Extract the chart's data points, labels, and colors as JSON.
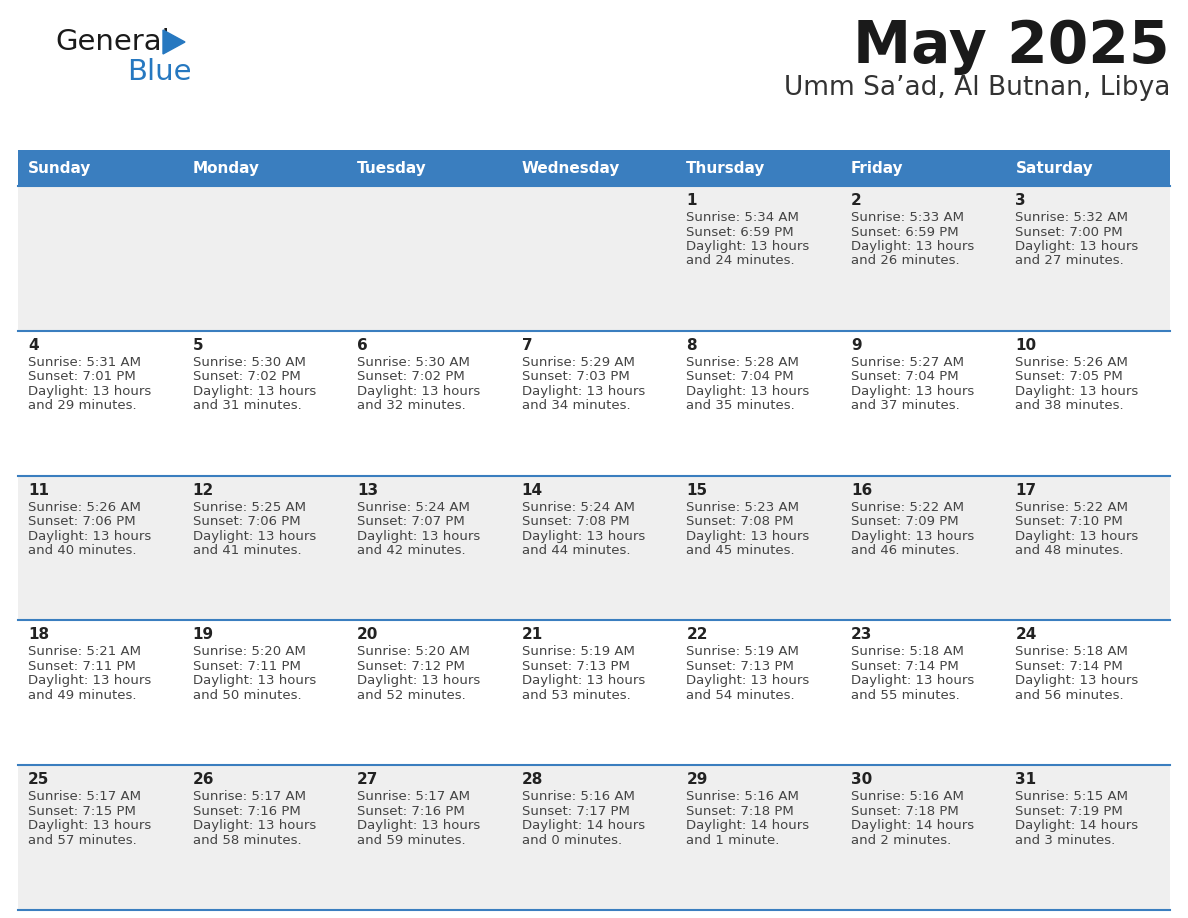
{
  "title": "May 2025",
  "subtitle": "Umm Sa’ad, Al Butnan, Libya",
  "header_bg": "#3a7ebf",
  "header_text_color": "#ffffff",
  "cell_bg_row0": "#efefef",
  "cell_bg_row1": "#ffffff",
  "separator_color": "#3a7ebf",
  "text_color": "#444444",
  "day_num_color": "#222222",
  "days_of_week": [
    "Sunday",
    "Monday",
    "Tuesday",
    "Wednesday",
    "Thursday",
    "Friday",
    "Saturday"
  ],
  "calendar_data": [
    [
      {
        "day": "",
        "sunrise": "",
        "sunset": "",
        "daylight": ""
      },
      {
        "day": "",
        "sunrise": "",
        "sunset": "",
        "daylight": ""
      },
      {
        "day": "",
        "sunrise": "",
        "sunset": "",
        "daylight": ""
      },
      {
        "day": "",
        "sunrise": "",
        "sunset": "",
        "daylight": ""
      },
      {
        "day": "1",
        "sunrise": "5:34 AM",
        "sunset": "6:59 PM",
        "daylight": "13 hours\nand 24 minutes."
      },
      {
        "day": "2",
        "sunrise": "5:33 AM",
        "sunset": "6:59 PM",
        "daylight": "13 hours\nand 26 minutes."
      },
      {
        "day": "3",
        "sunrise": "5:32 AM",
        "sunset": "7:00 PM",
        "daylight": "13 hours\nand 27 minutes."
      }
    ],
    [
      {
        "day": "4",
        "sunrise": "5:31 AM",
        "sunset": "7:01 PM",
        "daylight": "13 hours\nand 29 minutes."
      },
      {
        "day": "5",
        "sunrise": "5:30 AM",
        "sunset": "7:02 PM",
        "daylight": "13 hours\nand 31 minutes."
      },
      {
        "day": "6",
        "sunrise": "5:30 AM",
        "sunset": "7:02 PM",
        "daylight": "13 hours\nand 32 minutes."
      },
      {
        "day": "7",
        "sunrise": "5:29 AM",
        "sunset": "7:03 PM",
        "daylight": "13 hours\nand 34 minutes."
      },
      {
        "day": "8",
        "sunrise": "5:28 AM",
        "sunset": "7:04 PM",
        "daylight": "13 hours\nand 35 minutes."
      },
      {
        "day": "9",
        "sunrise": "5:27 AM",
        "sunset": "7:04 PM",
        "daylight": "13 hours\nand 37 minutes."
      },
      {
        "day": "10",
        "sunrise": "5:26 AM",
        "sunset": "7:05 PM",
        "daylight": "13 hours\nand 38 minutes."
      }
    ],
    [
      {
        "day": "11",
        "sunrise": "5:26 AM",
        "sunset": "7:06 PM",
        "daylight": "13 hours\nand 40 minutes."
      },
      {
        "day": "12",
        "sunrise": "5:25 AM",
        "sunset": "7:06 PM",
        "daylight": "13 hours\nand 41 minutes."
      },
      {
        "day": "13",
        "sunrise": "5:24 AM",
        "sunset": "7:07 PM",
        "daylight": "13 hours\nand 42 minutes."
      },
      {
        "day": "14",
        "sunrise": "5:24 AM",
        "sunset": "7:08 PM",
        "daylight": "13 hours\nand 44 minutes."
      },
      {
        "day": "15",
        "sunrise": "5:23 AM",
        "sunset": "7:08 PM",
        "daylight": "13 hours\nand 45 minutes."
      },
      {
        "day": "16",
        "sunrise": "5:22 AM",
        "sunset": "7:09 PM",
        "daylight": "13 hours\nand 46 minutes."
      },
      {
        "day": "17",
        "sunrise": "5:22 AM",
        "sunset": "7:10 PM",
        "daylight": "13 hours\nand 48 minutes."
      }
    ],
    [
      {
        "day": "18",
        "sunrise": "5:21 AM",
        "sunset": "7:11 PM",
        "daylight": "13 hours\nand 49 minutes."
      },
      {
        "day": "19",
        "sunrise": "5:20 AM",
        "sunset": "7:11 PM",
        "daylight": "13 hours\nand 50 minutes."
      },
      {
        "day": "20",
        "sunrise": "5:20 AM",
        "sunset": "7:12 PM",
        "daylight": "13 hours\nand 52 minutes."
      },
      {
        "day": "21",
        "sunrise": "5:19 AM",
        "sunset": "7:13 PM",
        "daylight": "13 hours\nand 53 minutes."
      },
      {
        "day": "22",
        "sunrise": "5:19 AM",
        "sunset": "7:13 PM",
        "daylight": "13 hours\nand 54 minutes."
      },
      {
        "day": "23",
        "sunrise": "5:18 AM",
        "sunset": "7:14 PM",
        "daylight": "13 hours\nand 55 minutes."
      },
      {
        "day": "24",
        "sunrise": "5:18 AM",
        "sunset": "7:14 PM",
        "daylight": "13 hours\nand 56 minutes."
      }
    ],
    [
      {
        "day": "25",
        "sunrise": "5:17 AM",
        "sunset": "7:15 PM",
        "daylight": "13 hours\nand 57 minutes."
      },
      {
        "day": "26",
        "sunrise": "5:17 AM",
        "sunset": "7:16 PM",
        "daylight": "13 hours\nand 58 minutes."
      },
      {
        "day": "27",
        "sunrise": "5:17 AM",
        "sunset": "7:16 PM",
        "daylight": "13 hours\nand 59 minutes."
      },
      {
        "day": "28",
        "sunrise": "5:16 AM",
        "sunset": "7:17 PM",
        "daylight": "14 hours\nand 0 minutes."
      },
      {
        "day": "29",
        "sunrise": "5:16 AM",
        "sunset": "7:18 PM",
        "daylight": "14 hours\nand 1 minute."
      },
      {
        "day": "30",
        "sunrise": "5:16 AM",
        "sunset": "7:18 PM",
        "daylight": "14 hours\nand 2 minutes."
      },
      {
        "day": "31",
        "sunrise": "5:15 AM",
        "sunset": "7:19 PM",
        "daylight": "14 hours\nand 3 minutes."
      }
    ]
  ]
}
